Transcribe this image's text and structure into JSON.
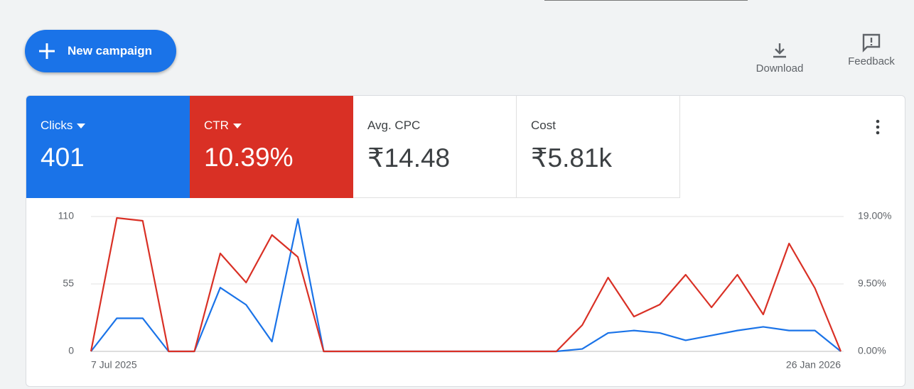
{
  "header": {
    "new_campaign": "New campaign",
    "download": "Download",
    "feedback": "Feedback"
  },
  "other_metrics": [
    {
      "label": "Avg. CPC",
      "value": "₹14.48"
    },
    {
      "label": "Cost",
      "value": "₹5.81k"
    }
  ],
  "chart_data": {
    "type": "line",
    "categories": [
      "7 Jul 2025",
      null,
      null,
      null,
      null,
      null,
      null,
      null,
      null,
      null,
      null,
      null,
      null,
      null,
      null,
      null,
      null,
      null,
      null,
      null,
      null,
      null,
      null,
      null,
      null,
      null,
      null,
      null,
      null,
      "26 Jan 2026"
    ],
    "series": [
      {
        "name": "Clicks",
        "total": "401",
        "color": "#1a73e8",
        "values": [
          0,
          27,
          27,
          0,
          0,
          52,
          38,
          8,
          108,
          0,
          0,
          0,
          0,
          0,
          0,
          0,
          0,
          0,
          0,
          2,
          15,
          17,
          15,
          9,
          13,
          17,
          20,
          17,
          17,
          0
        ]
      },
      {
        "name": "CTR",
        "total": "10.39%",
        "color": "#d93025",
        "axis": "y2",
        "values": [
          0,
          18.8,
          18.4,
          0,
          0,
          13.8,
          9.7,
          16.4,
          13.3,
          0,
          0,
          0,
          0,
          0,
          0,
          0,
          0,
          0,
          0,
          3.7,
          10.4,
          4.9,
          6.6,
          10.8,
          6.2,
          10.8,
          5.2,
          15.2,
          8.9,
          0
        ]
      }
    ],
    "ylim": [
      0,
      110
    ],
    "yticks": [
      0,
      55,
      110
    ],
    "y2lim": [
      0,
      19
    ],
    "y2ticks": [
      {
        "value": 0,
        "label": "0.00%"
      },
      {
        "value": 9.5,
        "label": "9.50%"
      },
      {
        "value": 19,
        "label": "19.00%"
      }
    ],
    "grid": true
  }
}
